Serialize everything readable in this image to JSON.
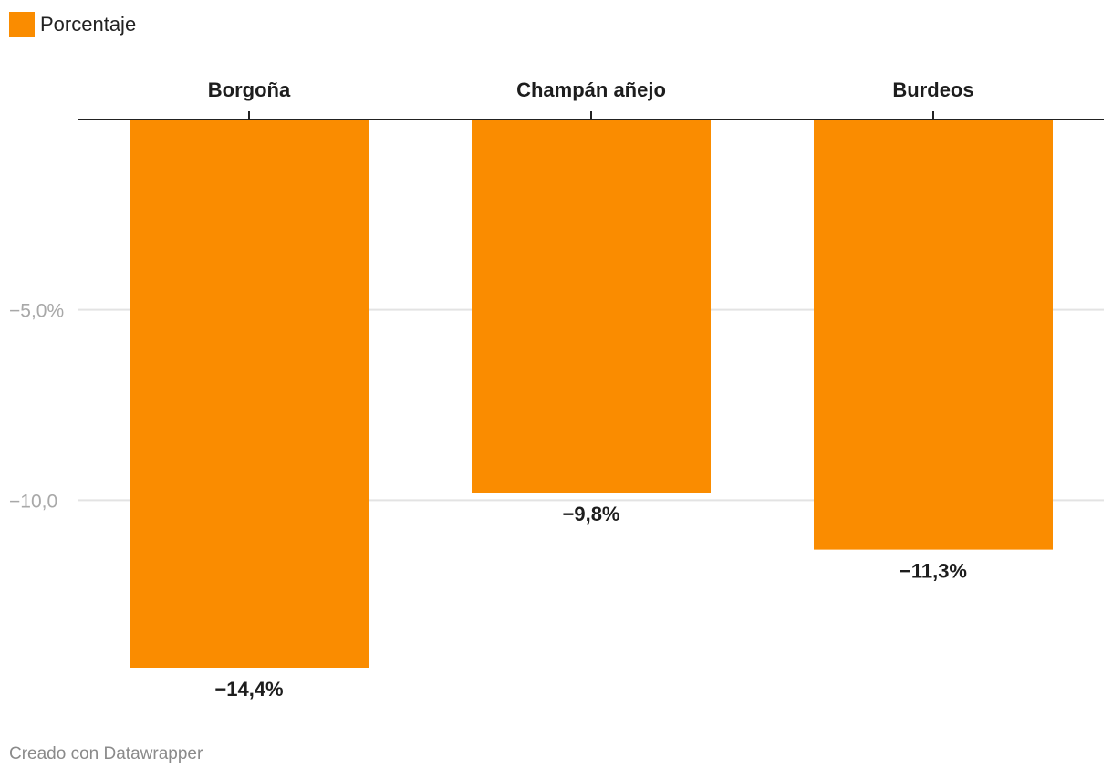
{
  "legend": {
    "label": "Porcentaje",
    "color": "#fa8c00"
  },
  "chart_data": {
    "type": "bar",
    "categories": [
      "Borgoña",
      "Champán añejo",
      "Burdeos"
    ],
    "series": [
      {
        "name": "Porcentaje",
        "values": [
          -14.4,
          -9.8,
          -11.3
        ],
        "color": "#fa8c00"
      }
    ],
    "value_labels": [
      "−14,4%",
      "−9,8%",
      "−11,3%"
    ],
    "y_ticks": [
      {
        "value": -5,
        "label": "−5,0%"
      },
      {
        "value": -10,
        "label": "−10,0"
      }
    ],
    "ylim": [
      -14.4,
      0
    ],
    "x_axis_position": "top",
    "grid": true,
    "legend_position": "top-left"
  },
  "footer": {
    "credit": "Creado con Datawrapper"
  }
}
